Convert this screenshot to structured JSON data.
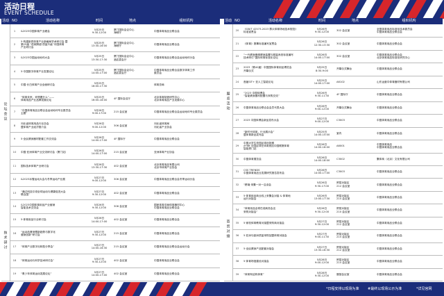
{
  "page": {
    "title_cn": "活动日程",
    "title_en": "EVENT SCHEDULE"
  },
  "columns": {
    "category": "活动类型",
    "no": "NO",
    "name": "活动名称",
    "time": "时间",
    "location": "地点",
    "org": "组织机构"
  },
  "left": {
    "categories": [
      {
        "label": "论坛会议",
        "span": 13
      },
      {
        "label": "技术研讨",
        "span": 6
      }
    ],
    "rows": [
      {
        "no": "1",
        "name": "&2023中国体育产业峰会",
        "time": "5月25日\n9:30-12:00",
        "loc": "厦门国际会议中心\n海峡厅",
        "org": "中国体育用品业联合会"
      },
      {
        "no": "2",
        "name": "5·构建新质体育产业新格局学术研讨会 暨\n第25届 “低碳跨越·质量升级”中国体育\n产业研讨会",
        "time": "5月25日\n13:30-16:00",
        "loc": "厦门国际会议中心\n海峡厅",
        "org": "中国体育用品业联合会"
      },
      {
        "no": "3",
        "name": "&2023中国运动地坪大会",
        "time": "5月25日\n13:30-17:30",
        "loc": "厦门国际会议中心\n酒店宴会厅",
        "org": "中国体育用品业联合会运动地坪分会"
      },
      {
        "no": "4",
        "name": "5·中国数字体育产业发展论坛",
        "time": "5月25日\n14:00-17:00",
        "loc": "厦门国际会议中心\n酒店宴会厅",
        "org": "中国体育用品业联合会数字体育工作\n委员会"
      },
      {
        "no": "5",
        "name": "中国·长白体育产业全面研讨会",
        "time": "5月25日\n16:00-17:30",
        "loc": "",
        "org": "体育总局"
      },
      {
        "no": "6",
        "name": "“体育未来，你想要什么”——\n体育用品产业品牌发展论坛",
        "time": "5月25日\n16:00-18:00",
        "loc": "4F 国际会议厅",
        "org": "北京体育制造研究中心\n北京体育用品产业发展中心"
      },
      {
        "no": "7",
        "name": "“中国体育用品业联合会运动地坪专业委员会\n主题”",
        "time": "5月26日\n9:00-17:00",
        "loc": "215 会议室",
        "org": "中国体育用品业联合会运动地坪专业委员会"
      },
      {
        "no": "8",
        "name": "河北省体育用品行业协会\n暨体育产业经济推介会",
        "time": "5月26日\n9:00-12:00",
        "loc": "306 会议室",
        "org": "河北省体育局\n河北省产业协会"
      },
      {
        "no": "9",
        "name": "5·全民健身器材配套工作交流会",
        "time": "5月26日\n14:00-17:00",
        "loc": "4F 国际厅",
        "org": "中国体育用品业联合会"
      },
      {
        "no": "10",
        "name": "中国·亚洲体育产业交流研讨会（厦门站）",
        "time": "5月26日\n14:00-17:00",
        "loc": "215 会议室",
        "org": "亚洲体育产业协会"
      },
      {
        "no": "11",
        "name": "国际技术体育产业研讨会",
        "time": "5月26日\n13:30-17:30",
        "loc": "402 会议室",
        "org": "北京体育用品有限公司\n北京市体育产业协会"
      },
      {
        "no": "12",
        "name": "&2023冰雪运动大会与冬季运动产业展",
        "time": "5月27日\n9:00-12:00",
        "loc": "306 会议室",
        "org": "中国体育用品业联合会冬季运动分会"
      },
      {
        "no": "13",
        "name": "“通过科技引领全球运动与健康促进大会\n联合国”",
        "time": "5月27日\n9:30-12:00",
        "loc": "402 会议室",
        "org": "中国体育用品业联合会"
      },
      {
        "no": "14",
        "name": "&2023中国体育用品产业营销\n智能技术交流会",
        "time": "5月26日\n9:30-12:00",
        "loc": "306 会议室",
        "org": "国家体育总局体育器材中心\n中国体育用品业联合会"
      },
      {
        "no": "15",
        "name": "5·体育用品行业研讨会",
        "time": "5月26日\n14:00-17:00",
        "loc": "402 会议室",
        "org": "中国体育用品业联合会"
      },
      {
        "no": "16",
        "name": "“运动品牌消费新趋势与数字化\n营销创新”研讨会",
        "time": "5月27日\n9:30-12:00",
        "loc": "215 会议室",
        "org": "中国体育用品业联合会"
      },
      {
        "no": "17",
        "name": "“体育产业数字化转型分享会”",
        "time": "5月27日\n14:00-16:30",
        "loc": "215 会议室",
        "org": "中国体育用品业联合会运动分会"
      },
      {
        "no": "18",
        "name": "“体育运动与科学技术研讨会”",
        "time": "5月27日\n9:30-12:00",
        "loc": "402 会议室",
        "org": "中国体育用品业联合会"
      },
      {
        "no": "19",
        "name": "“青少年体育运动发展论坛”",
        "time": "5月27日\n14:00-17:00",
        "loc": "402 会议室",
        "org": "中国体育用品业联合会"
      }
    ]
  },
  "right": {
    "categories": [
      {
        "label": "展览活动",
        "span": 12
      },
      {
        "label": "商贸对接",
        "span": 8
      }
    ],
    "rows": [
      {
        "no": "20",
        "name": "《GB/T 42573-2023 群众体育场地技术规范》\n标准宣贯会",
        "time": "5月26日\n9:30-12:00",
        "loc": "302 会议室",
        "org": "全国体育用品标准化技术委员会\n中国体育用品业联合会"
      },
      {
        "no": "21",
        "name": "《体育》赛事标准编写宣贯会",
        "time": "5月26日\n12:30-13:30",
        "loc": "302 会议室",
        "org": "中国体育用品业联合会"
      },
      {
        "no": "22",
        "name": "“一代健身器械健身装置与服装系统标准编写\n技术研讨”国际体育标准化论坛",
        "time": "5月26日\n14:00-17:00",
        "loc": "302 会议室",
        "org": "中国体育用品业联合会\n北京体育用品标准化研究中心"
      },
      {
        "no": "23",
        "name": "2023（第40届）中国国际体育用品博览会\n开幕仪式",
        "time": "5月25日\n8:30-9:00",
        "loc": "开幕仪式舞台",
        "org": "中国体育用品业联合会"
      },
      {
        "no": "24",
        "name": "首届SIT+ 亚人工智能论坛",
        "time": "5月25日\n14:00-17:00",
        "loc": "A6102",
        "org": "山东运营中体育器材有限公司"
      },
      {
        "no": "25",
        "name": "“2023 中国体博会\n“智能健身器材配置与采购交流”",
        "time": "5月26日\n9:30-11:30",
        "loc": "4F 国际厅",
        "org": "中国体育用品业联合会"
      },
      {
        "no": "26",
        "name": "中国体育用品业联合会会员代表大会",
        "time": "5月26日\n9:00-12:00",
        "loc": "开幕仪式舞台",
        "org": "中国体育用品业联合会"
      },
      {
        "no": "27",
        "name": "2023 中国体博会新品发布大会",
        "time": "5月27日\n9:00-12:00",
        "loc": "C3003",
        "org": "中国体育用品业联合会"
      },
      {
        "no": "28",
        "name": "“新时代体育，行业展示会”\n暨体育新品发布会",
        "time": "5月25日\n14:00-15:00",
        "loc": "室内",
        "org": "中国体育用品业联合会"
      },
      {
        "no": "29",
        "name": "中国大学生校园足球创投赛\n/IFBB 中国足球在体育竞技中国联赛体育\n智能厦门站",
        "time": "5月26日\n14:00-16:00",
        "loc": "A6001",
        "org": "中国体育用品\n中国体育用品业联合会"
      },
      {
        "no": "30",
        "name": "中国体育展览会",
        "time": "5月26日\n14:00-18:00",
        "loc": "C3002",
        "org": "集体商（北京）文化有限公司"
      },
      {
        "no": "31",
        "name": "CSS TRENDS\n中国体育用品业发展研究报告发布会",
        "time": "5月26日\n14:00-17:00",
        "loc": "C3003",
        "org": "中国体育用品业联合会"
      },
      {
        "no": "32",
        "name": "“跨境·采集一对一洽谈会",
        "time": "5月26日\n9:30-17:00",
        "loc": "贸易对接区\n212 会议室",
        "org": "中国体育用品业联合会"
      },
      {
        "no": "33",
        "name": "5·体育用品商业线上采集会对接 & 体育地\n运行对接会",
        "time": "5月26日\n13:00-17:30",
        "loc": "贸易对接区\n215 会议室",
        "org": "中国体育用品业联合会"
      },
      {
        "no": "34",
        "name": "“体育用品全球在线商务会议\n采购对接会”",
        "time": "5月26日\n9:30-12:00",
        "loc": "贸易对接区\n210 会议室",
        "org": "中国体育用品业联合会"
      },
      {
        "no": "35",
        "name": "5·家校体育教育对接暨采购商对接会",
        "time": "5月27日\n9:30-12:00",
        "loc": "贸易对接区\n212 会议室",
        "org": "中国体育用品业联合会"
      },
      {
        "no": "36",
        "name": "5·亚洲与欧洲质量采购加盟体育对接会",
        "time": "5月27日\n9:00-11:30",
        "loc": "贸易对接区\n215 会议室",
        "org": "中国体育用品业联合会"
      },
      {
        "no": "37",
        "name": "5·全民健身产品配套对接会",
        "time": "5月27日\n13:30-16:30",
        "loc": "贸易对接区\n212 会议室",
        "org": "中国体育用品业联合会"
      },
      {
        "no": "38",
        "name": "5·体育场馆建设对接会",
        "time": "5月28日\n9:00-12:00",
        "loc": "贸易对接区\n215 会议室",
        "org": "中国体育用品业联合会"
      },
      {
        "no": "39",
        "name": "“体育有结构体育”",
        "time": "5月28日\n9:30-12:00",
        "loc": "展馆会议室",
        "org": "中国体育用品业联合会"
      }
    ]
  },
  "footer": {
    "notes": [
      "*日程安排以现场为准",
      "#最终以现场公示为准",
      "*详见官网"
    ]
  },
  "colors": {
    "navy": "#1b2d7a",
    "red": "#d7262b",
    "grid": "#bbbbbb"
  }
}
